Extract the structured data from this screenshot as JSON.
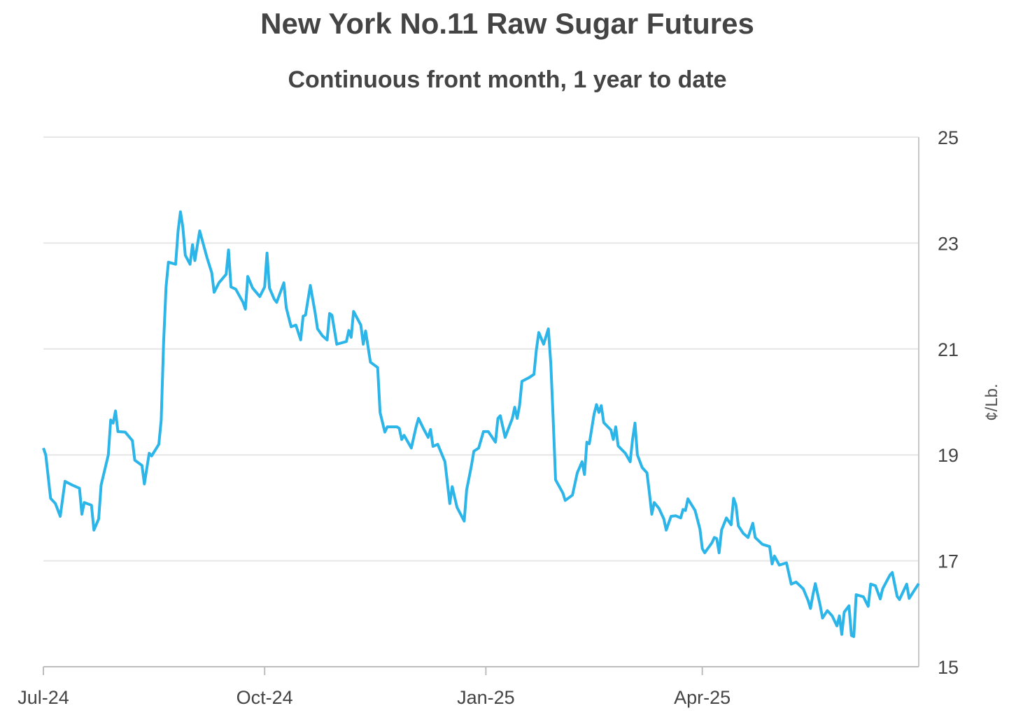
{
  "chart_data": {
    "type": "line",
    "title": "New York No.11 Raw Sugar Futures",
    "subtitle": "Continuous front month, 1 year to date",
    "xlabel": "",
    "ylabel": "¢/Lb.",
    "x_unit": "days since 2024-07-01",
    "xlim": [
      0,
      364
    ],
    "ylim": [
      15,
      25
    ],
    "yticks": [
      15,
      17,
      19,
      21,
      23,
      25
    ],
    "xticks": [
      {
        "label": "Jul-24",
        "day": 0
      },
      {
        "label": "Oct-24",
        "day": 92
      },
      {
        "label": "Jan-25",
        "day": 184
      },
      {
        "label": "Apr-25",
        "day": 274
      }
    ],
    "grid": true,
    "line_color": "#2bb5e8",
    "series": [
      {
        "name": "Raw Sugar No.11",
        "points": [
          [
            0,
            19.13
          ],
          [
            1,
            19.0
          ],
          [
            3,
            18.18
          ],
          [
            5,
            18.08
          ],
          [
            7,
            17.84
          ],
          [
            9,
            18.5
          ],
          [
            12,
            18.43
          ],
          [
            15,
            18.37
          ],
          [
            16,
            17.88
          ],
          [
            17,
            18.1
          ],
          [
            20,
            18.05
          ],
          [
            21,
            17.58
          ],
          [
            23,
            17.79
          ],
          [
            24,
            18.43
          ],
          [
            27,
            19.0
          ],
          [
            28,
            19.66
          ],
          [
            29,
            19.6
          ],
          [
            30,
            19.83
          ],
          [
            31,
            19.44
          ],
          [
            34,
            19.43
          ],
          [
            37,
            19.27
          ],
          [
            38,
            18.9
          ],
          [
            41,
            18.8
          ],
          [
            42,
            18.45
          ],
          [
            44,
            19.03
          ],
          [
            45,
            18.98
          ],
          [
            48,
            19.2
          ],
          [
            49,
            19.66
          ],
          [
            50,
            21.12
          ],
          [
            51,
            22.17
          ],
          [
            52,
            22.64
          ],
          [
            55,
            22.6
          ],
          [
            56,
            23.23
          ],
          [
            57,
            23.59
          ],
          [
            58,
            23.3
          ],
          [
            59,
            22.77
          ],
          [
            61,
            22.6
          ],
          [
            62,
            22.97
          ],
          [
            63,
            22.67
          ],
          [
            65,
            23.23
          ],
          [
            68,
            22.73
          ],
          [
            70,
            22.44
          ],
          [
            71,
            22.07
          ],
          [
            73,
            22.25
          ],
          [
            76,
            22.41
          ],
          [
            77,
            22.87
          ],
          [
            78,
            22.17
          ],
          [
            80,
            22.13
          ],
          [
            83,
            21.88
          ],
          [
            84,
            21.75
          ],
          [
            85,
            22.37
          ],
          [
            87,
            22.15
          ],
          [
            90,
            21.99
          ],
          [
            92,
            22.17
          ],
          [
            93,
            22.81
          ],
          [
            94,
            22.15
          ],
          [
            96,
            21.94
          ],
          [
            97,
            21.88
          ],
          [
            100,
            22.25
          ],
          [
            101,
            21.78
          ],
          [
            103,
            21.42
          ],
          [
            105,
            21.45
          ],
          [
            107,
            21.17
          ],
          [
            108,
            21.62
          ],
          [
            109,
            21.64
          ],
          [
            111,
            22.2
          ],
          [
            113,
            21.68
          ],
          [
            114,
            21.38
          ],
          [
            116,
            21.25
          ],
          [
            118,
            21.17
          ],
          [
            119,
            21.67
          ],
          [
            120,
            21.64
          ],
          [
            122,
            21.09
          ],
          [
            126,
            21.14
          ],
          [
            127,
            21.35
          ],
          [
            128,
            21.22
          ],
          [
            129,
            21.71
          ],
          [
            132,
            21.45
          ],
          [
            133,
            21.09
          ],
          [
            134,
            21.34
          ],
          [
            136,
            20.75
          ],
          [
            139,
            20.65
          ],
          [
            140,
            19.8
          ],
          [
            142,
            19.43
          ],
          [
            143,
            19.53
          ],
          [
            147,
            19.53
          ],
          [
            148,
            19.5
          ],
          [
            149,
            19.29
          ],
          [
            150,
            19.37
          ],
          [
            153,
            19.13
          ],
          [
            155,
            19.53
          ],
          [
            156,
            19.69
          ],
          [
            158,
            19.5
          ],
          [
            160,
            19.33
          ],
          [
            161,
            19.48
          ],
          [
            162,
            19.16
          ],
          [
            164,
            19.2
          ],
          [
            167,
            18.87
          ],
          [
            168,
            18.47
          ],
          [
            169,
            18.08
          ],
          [
            170,
            18.4
          ],
          [
            172,
            18.01
          ],
          [
            175,
            17.75
          ],
          [
            176,
            18.34
          ],
          [
            178,
            18.8
          ],
          [
            179,
            19.07
          ],
          [
            181,
            19.13
          ],
          [
            183,
            19.44
          ],
          [
            185,
            19.44
          ],
          [
            188,
            19.24
          ],
          [
            189,
            19.69
          ],
          [
            190,
            19.74
          ],
          [
            192,
            19.33
          ],
          [
            195,
            19.69
          ],
          [
            196,
            19.9
          ],
          [
            197,
            19.69
          ],
          [
            198,
            19.93
          ],
          [
            199,
            20.39
          ],
          [
            202,
            20.46
          ],
          [
            204,
            20.52
          ],
          [
            205,
            20.98
          ],
          [
            206,
            21.31
          ],
          [
            208,
            21.09
          ],
          [
            210,
            21.38
          ],
          [
            211,
            20.72
          ],
          [
            212,
            19.66
          ],
          [
            213,
            18.53
          ],
          [
            216,
            18.28
          ],
          [
            217,
            18.14
          ],
          [
            220,
            18.24
          ],
          [
            222,
            18.66
          ],
          [
            224,
            18.87
          ],
          [
            225,
            18.63
          ],
          [
            226,
            19.24
          ],
          [
            227,
            19.21
          ],
          [
            229,
            19.77
          ],
          [
            230,
            19.95
          ],
          [
            231,
            19.8
          ],
          [
            232,
            19.93
          ],
          [
            233,
            19.61
          ],
          [
            236,
            19.47
          ],
          [
            237,
            19.29
          ],
          [
            238,
            19.53
          ],
          [
            239,
            19.17
          ],
          [
            242,
            19.03
          ],
          [
            244,
            18.87
          ],
          [
            245,
            19.29
          ],
          [
            246,
            19.6
          ],
          [
            247,
            19.0
          ],
          [
            249,
            18.76
          ],
          [
            251,
            18.66
          ],
          [
            252,
            18.28
          ],
          [
            253,
            17.88
          ],
          [
            254,
            18.1
          ],
          [
            256,
            17.99
          ],
          [
            258,
            17.79
          ],
          [
            259,
            17.58
          ],
          [
            261,
            17.84
          ],
          [
            263,
            17.85
          ],
          [
            265,
            17.81
          ],
          [
            266,
            17.97
          ],
          [
            267,
            17.95
          ],
          [
            268,
            18.17
          ],
          [
            271,
            17.95
          ],
          [
            273,
            17.6
          ],
          [
            274,
            17.23
          ],
          [
            275,
            17.15
          ],
          [
            278,
            17.34
          ],
          [
            279,
            17.44
          ],
          [
            280,
            17.42
          ],
          [
            281,
            17.15
          ],
          [
            282,
            17.58
          ],
          [
            284,
            17.81
          ],
          [
            286,
            17.68
          ],
          [
            287,
            18.18
          ],
          [
            288,
            18.05
          ],
          [
            289,
            17.66
          ],
          [
            291,
            17.52
          ],
          [
            293,
            17.44
          ],
          [
            295,
            17.71
          ],
          [
            296,
            17.44
          ],
          [
            299,
            17.31
          ],
          [
            302,
            17.27
          ],
          [
            303,
            16.94
          ],
          [
            304,
            17.09
          ],
          [
            306,
            16.92
          ],
          [
            309,
            16.96
          ],
          [
            311,
            16.56
          ],
          [
            313,
            16.6
          ],
          [
            316,
            16.47
          ],
          [
            318,
            16.25
          ],
          [
            319,
            16.1
          ],
          [
            320,
            16.36
          ],
          [
            321,
            16.57
          ],
          [
            323,
            16.16
          ],
          [
            324,
            15.92
          ],
          [
            326,
            16.06
          ],
          [
            328,
            15.96
          ],
          [
            330,
            15.77
          ],
          [
            331,
            15.96
          ],
          [
            332,
            15.61
          ],
          [
            333,
            16.03
          ],
          [
            335,
            16.15
          ],
          [
            336,
            15.59
          ],
          [
            337,
            15.57
          ],
          [
            338,
            16.36
          ],
          [
            341,
            16.32
          ],
          [
            343,
            16.14
          ],
          [
            344,
            16.56
          ],
          [
            346,
            16.53
          ],
          [
            348,
            16.28
          ],
          [
            349,
            16.47
          ],
          [
            352,
            16.73
          ],
          [
            353,
            16.78
          ],
          [
            355,
            16.33
          ],
          [
            356,
            16.27
          ],
          [
            359,
            16.56
          ],
          [
            360,
            16.29
          ],
          [
            362,
            16.43
          ],
          [
            364,
            16.57
          ]
        ]
      }
    ]
  }
}
